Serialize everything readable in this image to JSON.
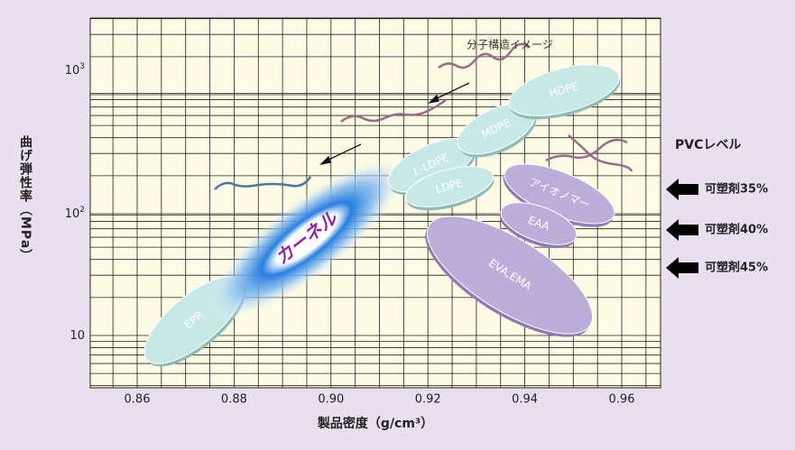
{
  "x_axis": {
    "title": "製品密度（g/cm³）",
    "ticks": [
      "0.86",
      "0.88",
      "0.90",
      "0.92",
      "0.94",
      "0.96"
    ]
  },
  "y_axis": {
    "title": "曲げ弾性率（MPa）",
    "ticks": [
      {
        "base": "10",
        "exp": "3"
      },
      {
        "base": "10",
        "exp": "2"
      },
      {
        "base": "10",
        "exp": ""
      }
    ]
  },
  "regions": [
    "EPR",
    "カーネル",
    "L-LDPE",
    "LDPE",
    "MDPE",
    "HDPE",
    "アイオノマー",
    "EAA",
    "EVA,EMA"
  ],
  "molecule_label": "分子構造イメージ",
  "pvc": {
    "title": "PVCレベル",
    "levels": [
      "可塑剤35%",
      "可塑剤40%",
      "可塑剤45%"
    ]
  }
}
